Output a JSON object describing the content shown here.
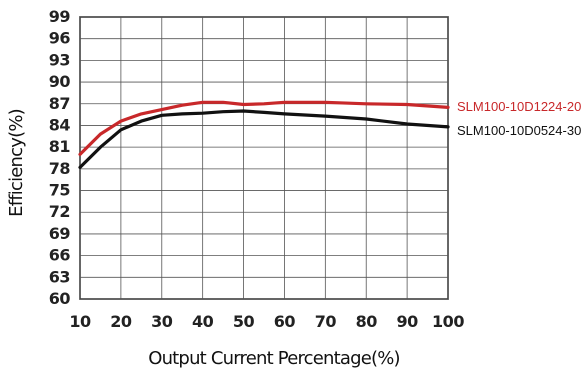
{
  "chart_data": {
    "type": "line",
    "title": "",
    "xlabel": "Output Current Percentage(%)",
    "ylabel": "Efficiency(%)",
    "xlim": [
      10,
      100
    ],
    "ylim": [
      60,
      99
    ],
    "xticks": [
      10,
      20,
      30,
      40,
      50,
      60,
      70,
      80,
      90,
      100
    ],
    "yticks": [
      60,
      63,
      66,
      69,
      72,
      75,
      78,
      81,
      84,
      87,
      90,
      93,
      96,
      99
    ],
    "grid": true,
    "legend": "right",
    "series": [
      {
        "name": "SLM100-10D1224-20",
        "color": "#c8282a",
        "x": [
          10,
          15,
          20,
          25,
          30,
          35,
          40,
          45,
          50,
          55,
          60,
          70,
          80,
          90,
          100
        ],
        "y": [
          80.0,
          82.8,
          84.6,
          85.6,
          86.2,
          86.8,
          87.2,
          87.2,
          86.9,
          87.0,
          87.2,
          87.2,
          87.0,
          86.9,
          86.5
        ]
      },
      {
        "name": "SLM100-10D0524-30",
        "color": "#111111",
        "x": [
          10,
          15,
          20,
          25,
          30,
          35,
          40,
          45,
          50,
          55,
          60,
          70,
          80,
          90,
          100
        ],
        "y": [
          78.2,
          81.0,
          83.4,
          84.6,
          85.4,
          85.6,
          85.7,
          85.9,
          86.0,
          85.8,
          85.6,
          85.3,
          84.9,
          84.2,
          83.8
        ]
      }
    ]
  }
}
